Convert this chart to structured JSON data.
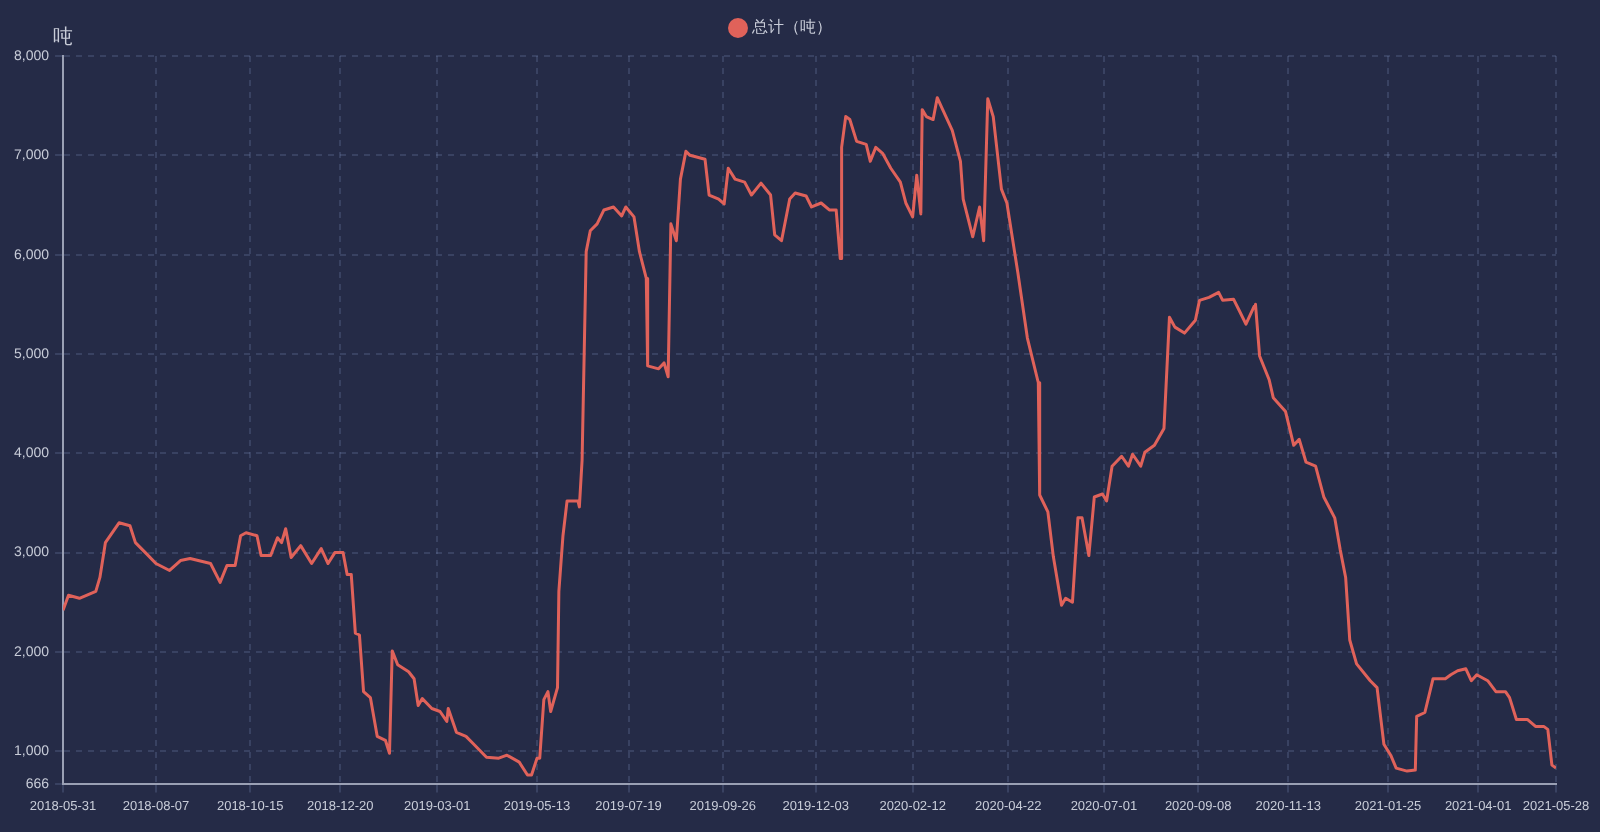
{
  "chart_data": {
    "type": "line",
    "ylabel": "吨",
    "legend": "top",
    "grid": true,
    "marker": "none",
    "line_style": "solid",
    "xlim": [
      "2018-05-31",
      "2021-05-28"
    ],
    "xticks": [
      "2018-05-31",
      "2018-08-07",
      "2018-10-15",
      "2018-12-20",
      "2019-03-01",
      "2019-05-13",
      "2019-07-19",
      "2019-09-26",
      "2019-12-03",
      "2020-02-12",
      "2020-04-22",
      "2020-07-01",
      "2020-09-08",
      "2020-11-13",
      "2021-01-25",
      "2021-04-01",
      "2021-05-28"
    ],
    "ylim": [
      666,
      8000
    ],
    "yticks": [
      666,
      {
        "value": 1000,
        "label": "1,000"
      },
      {
        "value": 2000,
        "label": "2,000"
      },
      {
        "value": 3000,
        "label": "3,000"
      },
      {
        "value": 4000,
        "label": "4,000"
      },
      {
        "value": 5000,
        "label": "5,000"
      },
      {
        "value": 6000,
        "label": "6,000"
      },
      {
        "value": 7000,
        "label": "7,000"
      },
      {
        "value": 8000,
        "label": "8,000"
      }
    ],
    "x": [
      "2018-05-31",
      "2018-06-04",
      "2018-06-12",
      "2018-06-24",
      "2018-06-27",
      "2018-07-01",
      "2018-07-11",
      "2018-07-19",
      "2018-07-23",
      "2018-07-31",
      "2018-08-07",
      "2018-08-17",
      "2018-08-25",
      "2018-09-01",
      "2018-09-16",
      "2018-09-23",
      "2018-09-28",
      "2018-10-04",
      "2018-10-08",
      "2018-10-12",
      "2018-10-20",
      "2018-10-23",
      "2018-10-30",
      "2018-11-04",
      "2018-11-07",
      "2018-11-10",
      "2018-11-14",
      "2018-11-21",
      "2018-11-29",
      "2018-12-06",
      "2018-12-11",
      "2018-12-16",
      "2018-12-22",
      "2018-12-25",
      "2018-12-28",
      "2018-12-31",
      "2019-01-03",
      "2019-01-06",
      "2019-01-11",
      "2019-01-16",
      "2019-01-22",
      "2019-01-25",
      "2019-01-27",
      "2019-01-31",
      "2019-02-08",
      "2019-02-12",
      "2019-02-15",
      "2019-02-18",
      "2019-02-25",
      "2019-03-03",
      "2019-03-08",
      "2019-03-09",
      "2019-03-15",
      "2019-03-22",
      "2019-03-27",
      "2019-04-06",
      "2019-04-15",
      "2019-04-21",
      "2019-04-30",
      "2019-05-06",
      "2019-05-09",
      "2019-05-13",
      "2019-05-15",
      "2019-05-18",
      "2019-05-21",
      "2019-05-23",
      "2019-05-28",
      "2019-05-29",
      "2019-06-01",
      "2019-06-04",
      "2019-06-12",
      "2019-06-13",
      "2019-06-15",
      "2019-06-18",
      "2019-06-21",
      "2019-06-26",
      "2019-07-01",
      "2019-07-08",
      "2019-07-14",
      "2019-07-17",
      "2019-07-23",
      "2019-07-27",
      "2019-08-01",
      "2019-08-02",
      "2019-08-10",
      "2019-08-14",
      "2019-08-17",
      "2019-08-19",
      "2019-08-23",
      "2019-08-26",
      "2019-08-30",
      "2019-09-02",
      "2019-09-13",
      "2019-09-16",
      "2019-09-23",
      "2019-09-27",
      "2019-09-30",
      "2019-10-05",
      "2019-10-12",
      "2019-10-17",
      "2019-10-24",
      "2019-10-31",
      "2019-11-03",
      "2019-11-08",
      "2019-11-14",
      "2019-11-18",
      "2019-11-26",
      "2019-11-30",
      "2019-12-07",
      "2019-12-13",
      "2019-12-18",
      "2019-12-21",
      "2019-12-22",
      "2019-12-25",
      "2019-12-28",
      "2020-01-02",
      "2020-01-09",
      "2020-01-12",
      "2020-01-16",
      "2020-01-21",
      "2020-01-27",
      "2020-02-03",
      "2020-02-07",
      "2020-02-12",
      "2020-02-15",
      "2020-02-18",
      "2020-02-19",
      "2020-02-22",
      "2020-02-27",
      "2020-03-01",
      "2020-03-05",
      "2020-03-12",
      "2020-03-18",
      "2020-03-20",
      "2020-03-27",
      "2020-04-01",
      "2020-04-04",
      "2020-04-07",
      "2020-04-11",
      "2020-04-17",
      "2020-04-21",
      "2020-04-29",
      "2020-05-06",
      "2020-05-14",
      "2020-05-15",
      "2020-05-21",
      "2020-05-25",
      "2020-05-31",
      "2020-06-03",
      "2020-06-08",
      "2020-06-12",
      "2020-06-15",
      "2020-06-20",
      "2020-06-24",
      "2020-06-30",
      "2020-07-03",
      "2020-07-07",
      "2020-07-14",
      "2020-07-19",
      "2020-07-22",
      "2020-07-28",
      "2020-07-31",
      "2020-08-07",
      "2020-08-14",
      "2020-08-18",
      "2020-08-22",
      "2020-08-29",
      "2020-09-06",
      "2020-09-09",
      "2020-09-16",
      "2020-09-23",
      "2020-09-26",
      "2020-10-04",
      "2020-10-08",
      "2020-10-13",
      "2020-10-19",
      "2020-10-20",
      "2020-10-23",
      "2020-10-30",
      "2020-11-02",
      "2020-11-11",
      "2020-11-17",
      "2020-11-21",
      "2020-11-26",
      "2020-12-03",
      "2020-12-09",
      "2020-12-17",
      "2020-12-21",
      "2020-12-25",
      "2020-12-28",
      "2021-01-02",
      "2021-01-12",
      "2021-01-17",
      "2021-01-22",
      "2021-01-27",
      "2021-01-31",
      "2021-02-08",
      "2021-02-14",
      "2021-02-15",
      "2021-02-21",
      "2021-02-27",
      "2021-03-08",
      "2021-03-12",
      "2021-03-17",
      "2021-03-23",
      "2021-03-27",
      "2021-03-31",
      "2021-04-08",
      "2021-04-14",
      "2021-04-21",
      "2021-04-24",
      "2021-04-29",
      "2021-05-07",
      "2021-05-13",
      "2021-05-19",
      "2021-05-22",
      "2021-05-25",
      "2021-05-28"
    ],
    "series": [
      {
        "name": "总计（吨）",
        "color": "#e0625a",
        "values": [
          2420,
          2570,
          2540,
          2610,
          2750,
          3100,
          3300,
          3270,
          3100,
          2990,
          2890,
          2820,
          2920,
          2940,
          2890,
          2700,
          2870,
          2870,
          3170,
          3200,
          3170,
          2970,
          2970,
          3150,
          3100,
          3240,
          2950,
          3070,
          2890,
          3040,
          2890,
          3000,
          3000,
          2780,
          2780,
          2190,
          2170,
          1600,
          1540,
          1150,
          1110,
          980,
          2010,
          1870,
          1800,
          1730,
          1460,
          1530,
          1430,
          1400,
          1300,
          1430,
          1190,
          1150,
          1080,
          940,
          930,
          960,
          890,
          760,
          760,
          930,
          930,
          1520,
          1600,
          1400,
          1640,
          2610,
          3170,
          3520,
          3520,
          3460,
          3930,
          6030,
          6240,
          6310,
          6450,
          6480,
          6390,
          6480,
          6380,
          6030,
          5760,
          4880,
          4850,
          4910,
          4770,
          6310,
          6140,
          6760,
          7040,
          7000,
          6960,
          6600,
          6560,
          6510,
          6870,
          6760,
          6730,
          6600,
          6720,
          6600,
          6200,
          6140,
          6560,
          6620,
          6590,
          6480,
          6520,
          6450,
          6450,
          5960,
          7080,
          7390,
          7360,
          7140,
          7110,
          6940,
          7080,
          7020,
          6870,
          6730,
          6520,
          6380,
          6800,
          6410,
          7460,
          7390,
          7360,
          7580,
          7460,
          7250,
          6940,
          6560,
          6180,
          6480,
          6140,
          7570,
          7390,
          6660,
          6520,
          5820,
          5160,
          4710,
          3580,
          3410,
          2960,
          2470,
          2540,
          2500,
          3350,
          3350,
          2970,
          3560,
          3590,
          3520,
          3870,
          3970,
          3870,
          3990,
          3870,
          4010,
          4080,
          4250,
          5370,
          5270,
          5210,
          5340,
          5540,
          5570,
          5620,
          5540,
          5550,
          5440,
          5300,
          5480,
          5500,
          4980,
          4740,
          4560,
          4420,
          4080,
          4140,
          3910,
          3870,
          3560,
          3350,
          3030,
          2750,
          2120,
          1880,
          1710,
          1640,
          1070,
          960,
          830,
          800,
          810,
          1350,
          1390,
          1730,
          1730,
          1770,
          1810,
          1830,
          1710,
          1770,
          1710,
          1600,
          1600,
          1540,
          1320,
          1320,
          1250,
          1250,
          1220,
          860,
          830
        ]
      }
    ]
  }
}
